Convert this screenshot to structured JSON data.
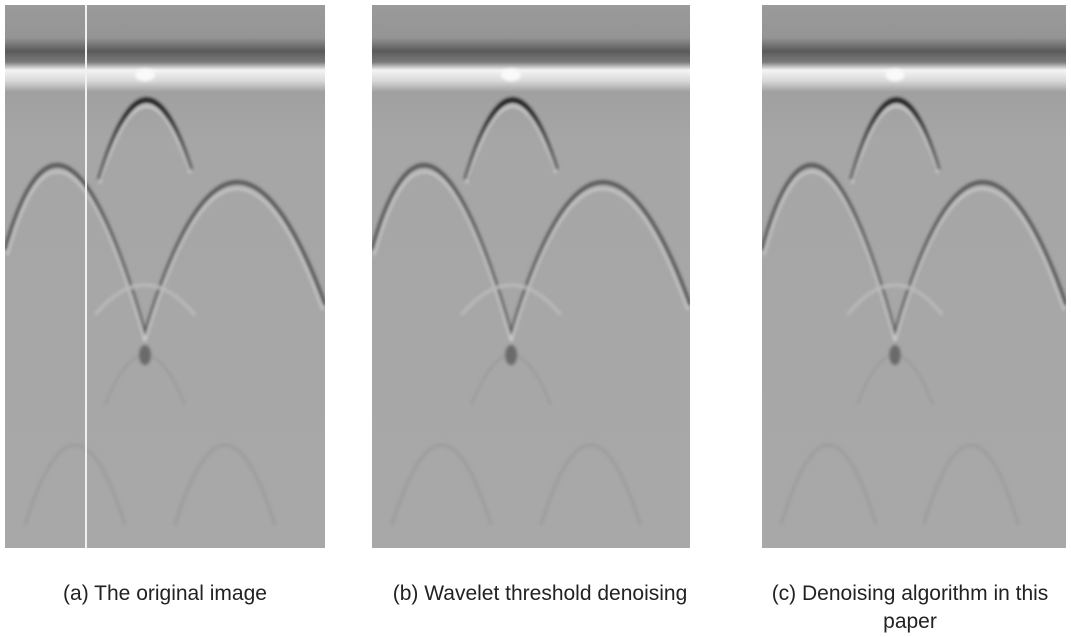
{
  "figure": {
    "panels": [
      {
        "caption": "(a) The original image"
      },
      {
        "caption": "(b) Wavelet threshold denoising"
      },
      {
        "caption": "(c) Denoising algorithm in this paper"
      }
    ]
  }
}
